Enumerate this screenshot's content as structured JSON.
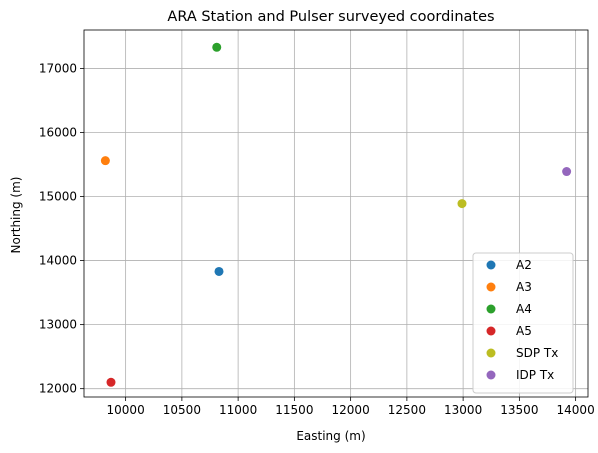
{
  "chart_data": {
    "type": "scatter",
    "title": "ARA Station and Pulser surveyed coordinates",
    "xlabel": "Easting (m)",
    "ylabel": "Northing (m)",
    "xlim": [
      9630,
      14110
    ],
    "ylim": [
      11870,
      17600
    ],
    "xticks": [
      10000,
      10500,
      11000,
      11500,
      12000,
      12500,
      13000,
      13500,
      14000
    ],
    "yticks": [
      12000,
      13000,
      14000,
      15000,
      16000,
      17000
    ],
    "grid": true,
    "legend_position": "lower-right",
    "series": [
      {
        "name": "A2",
        "color": "#1f77b4",
        "x": [
          10830
        ],
        "y": [
          13830
        ]
      },
      {
        "name": "A3",
        "color": "#ff7f0e",
        "x": [
          9820
        ],
        "y": [
          15560
        ]
      },
      {
        "name": "A4",
        "color": "#2ca02c",
        "x": [
          10810
        ],
        "y": [
          17330
        ]
      },
      {
        "name": "A5",
        "color": "#d62728",
        "x": [
          9870
        ],
        "y": [
          12100
        ]
      },
      {
        "name": "SDP Tx",
        "color": "#bcbd22",
        "x": [
          12990
        ],
        "y": [
          14890
        ]
      },
      {
        "name": "IDP Tx",
        "color": "#9467bd",
        "x": [
          13920
        ],
        "y": [
          15390
        ]
      }
    ]
  }
}
